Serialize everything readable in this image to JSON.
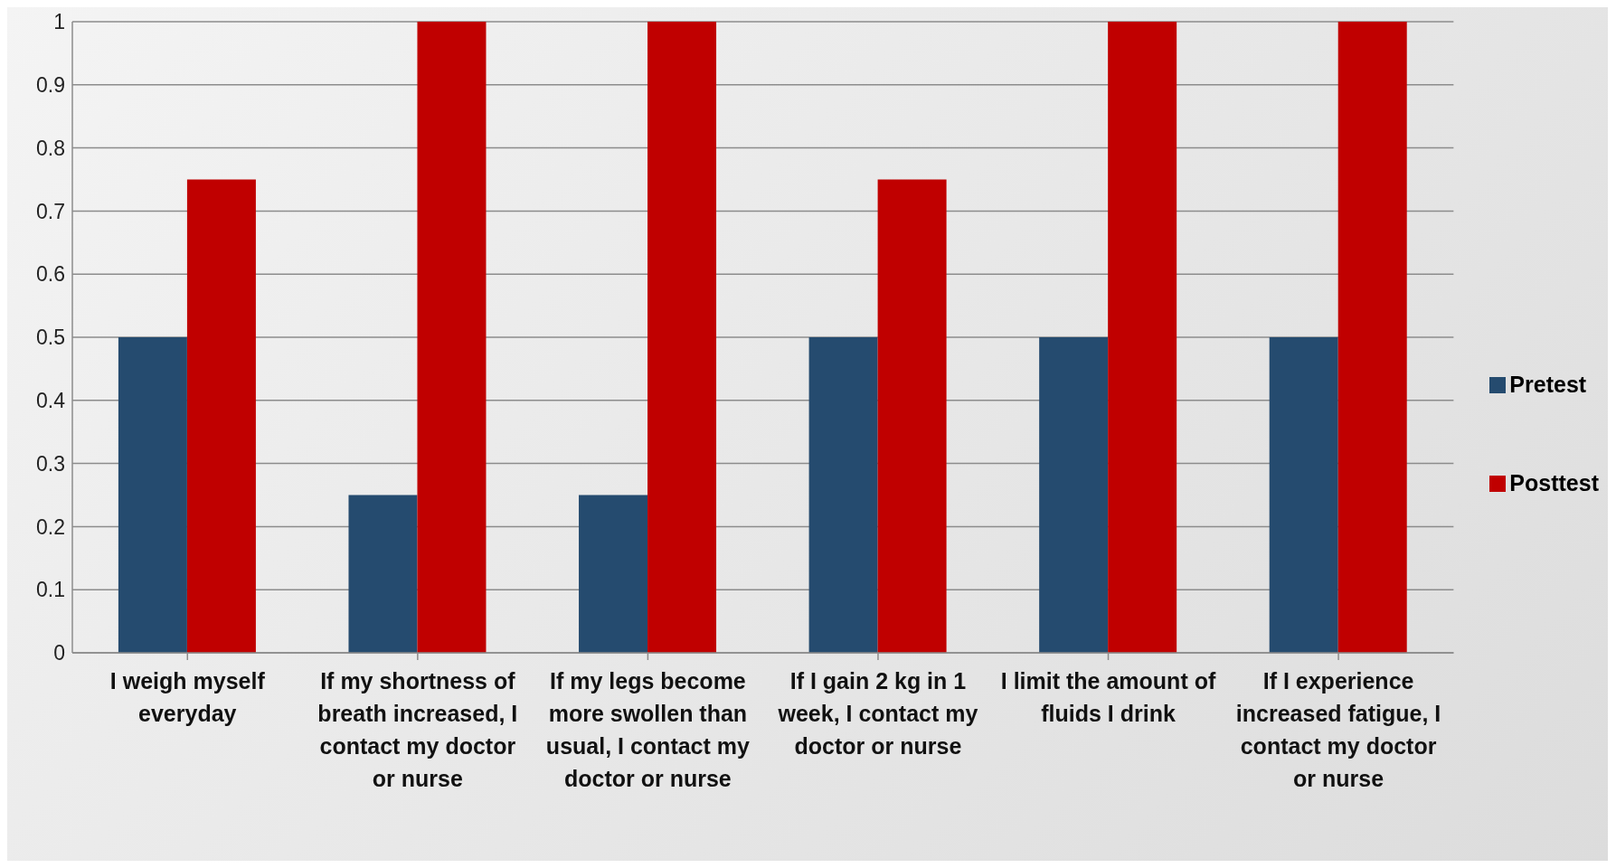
{
  "chart_data": {
    "type": "bar",
    "categories": [
      "I weigh myself everyday",
      "If my shortness of breath increased, I contact my doctor or nurse",
      "If my legs become more swollen than usual, I contact my doctor or nurse",
      "If I gain 2 kg in 1 week, I contact my doctor or nurse",
      "I limit the amount of fluids I drink",
      "If I experience increased fatigue, I contact my doctor or nurse"
    ],
    "series": [
      {
        "name": "Pretest",
        "color": "#254b6f",
        "values": [
          0.5,
          0.25,
          0.25,
          0.5,
          0.5,
          0.5
        ]
      },
      {
        "name": "Posttest",
        "color": "#c00000",
        "values": [
          0.75,
          1,
          1,
          0.75,
          1,
          1
        ]
      }
    ],
    "ylim": [
      0,
      1
    ],
    "yticks": [
      0,
      0.1,
      0.2,
      0.3,
      0.4,
      0.5,
      0.6,
      0.7,
      0.8,
      0.9,
      1
    ],
    "grid": "y",
    "legend": "right"
  }
}
